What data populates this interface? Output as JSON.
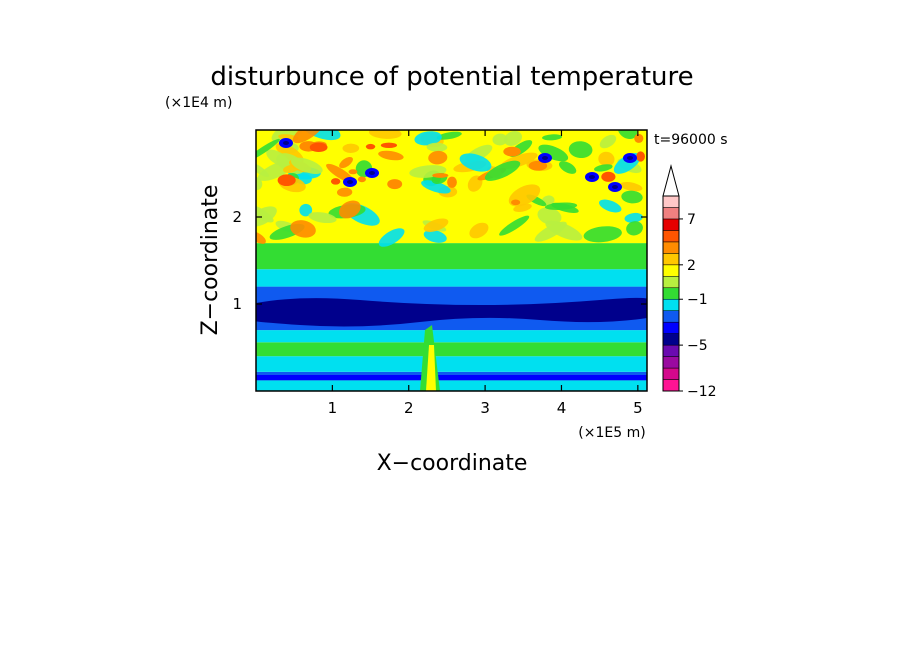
{
  "chart_data": {
    "type": "heatmap",
    "title": "disturbunce of potential temperature",
    "xlabel": "X−coordinate",
    "ylabel": "Z−coordinate",
    "x_unit": "(×1E5 m)",
    "y_unit": "(×1E4 m)",
    "time_label": "t=96000 s",
    "xlim": [
      0,
      5.12
    ],
    "ylim": [
      0,
      3.0
    ],
    "x_ticks": [
      {
        "value": 1,
        "label": "1"
      },
      {
        "value": 2,
        "label": "2"
      },
      {
        "value": 3,
        "label": "3"
      },
      {
        "value": 4,
        "label": "4"
      },
      {
        "value": 5,
        "label": "5"
      }
    ],
    "y_ticks": [
      {
        "value": 1,
        "label": "1"
      },
      {
        "value": 2,
        "label": "2"
      }
    ],
    "colorbar": {
      "levels": [
        -12,
        -5,
        -1,
        2,
        7
      ],
      "labels": [
        "−12",
        "−5",
        "−1",
        "2",
        "7"
      ],
      "colors": [
        "#ff1493",
        "#d4088c",
        "#9a0aa0",
        "#6a0ab0",
        "#00008c",
        "#0000ff",
        "#0f5af0",
        "#00e0f0",
        "#33dd33",
        "#b8f040",
        "#ffff00",
        "#ffc800",
        "#ff8c00",
        "#ff5500",
        "#e60000",
        "#f08080",
        "#ffc8c8"
      ],
      "extend": "max-arrow"
    },
    "bands": [
      {
        "z_from": 0.0,
        "z_to": 0.12,
        "color": "#00e0f0"
      },
      {
        "z_from": 0.12,
        "z_to": 0.22,
        "color": "#0f5af0"
      },
      {
        "z_from": 0.22,
        "z_to": 0.4,
        "color": "#00e0f0"
      },
      {
        "z_from": 0.4,
        "z_to": 0.56,
        "color": "#33dd33"
      },
      {
        "z_from": 0.56,
        "z_to": 0.7,
        "color": "#00e0f0"
      },
      {
        "z_from": 0.7,
        "z_to": 1.2,
        "color": "#0f5af0"
      },
      {
        "z_from": 1.2,
        "z_to": 1.4,
        "color": "#00e0f0"
      },
      {
        "z_from": 1.4,
        "z_to": 1.7,
        "color": "#33dd33"
      },
      {
        "z_from": 1.7,
        "z_to": 3.0,
        "color": "#ffff00"
      }
    ]
  }
}
